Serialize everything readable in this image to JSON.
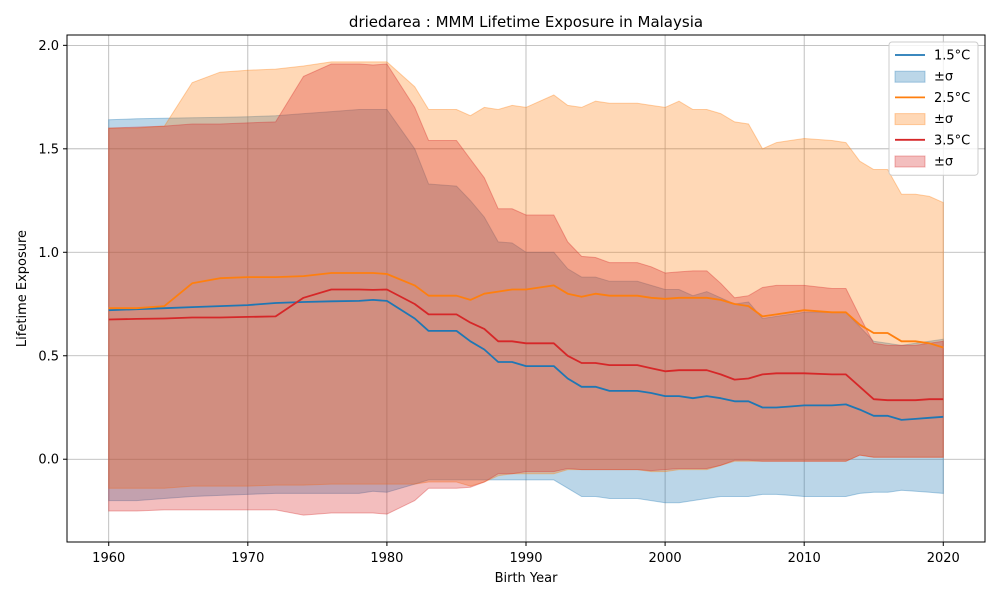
{
  "chart_data": {
    "type": "line",
    "title": "driedarea : MMM Lifetime Exposure in Malaysia",
    "xlabel": "Birth Year",
    "ylabel": "Lifetime Exposure",
    "xlim": [
      1957,
      2023
    ],
    "ylim": [
      -0.4,
      2.05
    ],
    "xticks": [
      1960,
      1970,
      1980,
      1990,
      2000,
      2010,
      2020
    ],
    "yticks": [
      0.0,
      0.5,
      1.0,
      1.5,
      2.0
    ],
    "ytick_labels": [
      "0.0",
      "0.5",
      "1.0",
      "1.5",
      "2.0"
    ],
    "grid": true,
    "legend_position": "upper right",
    "legend_band_label": "±σ",
    "x": [
      1960,
      1962,
      1964,
      1966,
      1968,
      1970,
      1972,
      1974,
      1976,
      1978,
      1979,
      1980,
      1982,
      1983,
      1985,
      1986,
      1987,
      1988,
      1989,
      1990,
      1992,
      1993,
      1994,
      1995,
      1996,
      1997,
      1998,
      1999,
      2000,
      2001,
      2002,
      2003,
      2004,
      2005,
      2006,
      2007,
      2008,
      2009,
      2010,
      2012,
      2013,
      2014,
      2015,
      2016,
      2017,
      2018,
      2019,
      2020
    ],
    "series": [
      {
        "name": "1.5°C",
        "color": "#1f77b4",
        "band_alpha": 0.3,
        "values": [
          0.72,
          0.725,
          0.73,
          0.735,
          0.74,
          0.745,
          0.755,
          0.76,
          0.763,
          0.765,
          0.77,
          0.765,
          0.68,
          0.62,
          0.62,
          0.57,
          0.53,
          0.47,
          0.47,
          0.45,
          0.45,
          0.39,
          0.35,
          0.35,
          0.33,
          0.33,
          0.33,
          0.32,
          0.305,
          0.305,
          0.295,
          0.305,
          0.295,
          0.28,
          0.28,
          0.25,
          0.25,
          0.255,
          0.26,
          0.26,
          0.265,
          0.24,
          0.21,
          0.21,
          0.19,
          0.195,
          0.2,
          0.205
        ],
        "upper": [
          1.64,
          1.645,
          1.648,
          1.65,
          1.652,
          1.655,
          1.66,
          1.67,
          1.68,
          1.69,
          1.69,
          1.69,
          1.5,
          1.33,
          1.32,
          1.25,
          1.17,
          1.05,
          1.045,
          1.0,
          1.0,
          0.92,
          0.88,
          0.88,
          0.86,
          0.86,
          0.86,
          0.84,
          0.82,
          0.82,
          0.79,
          0.81,
          0.78,
          0.75,
          0.76,
          0.68,
          0.69,
          0.7,
          0.71,
          0.71,
          0.71,
          0.64,
          0.57,
          0.56,
          0.55,
          0.56,
          0.57,
          0.58
        ],
        "lower": [
          -0.2,
          -0.2,
          -0.19,
          -0.18,
          -0.175,
          -0.17,
          -0.165,
          -0.165,
          -0.165,
          -0.165,
          -0.155,
          -0.16,
          -0.12,
          -0.1,
          -0.1,
          -0.1,
          -0.1,
          -0.1,
          -0.1,
          -0.1,
          -0.1,
          -0.14,
          -0.18,
          -0.18,
          -0.19,
          -0.19,
          -0.19,
          -0.2,
          -0.21,
          -0.21,
          -0.2,
          -0.19,
          -0.18,
          -0.18,
          -0.18,
          -0.17,
          -0.17,
          -0.175,
          -0.18,
          -0.18,
          -0.18,
          -0.165,
          -0.16,
          -0.16,
          -0.15,
          -0.155,
          -0.16,
          -0.165
        ]
      },
      {
        "name": "2.5°C",
        "color": "#ff7f0e",
        "band_alpha": 0.3,
        "values": [
          0.73,
          0.73,
          0.74,
          0.85,
          0.875,
          0.88,
          0.88,
          0.885,
          0.9,
          0.9,
          0.9,
          0.895,
          0.84,
          0.79,
          0.79,
          0.77,
          0.8,
          0.81,
          0.82,
          0.82,
          0.84,
          0.8,
          0.785,
          0.8,
          0.79,
          0.79,
          0.79,
          0.78,
          0.775,
          0.78,
          0.78,
          0.78,
          0.77,
          0.75,
          0.74,
          0.69,
          0.7,
          0.71,
          0.72,
          0.71,
          0.71,
          0.65,
          0.61,
          0.61,
          0.57,
          0.57,
          0.56,
          0.54
        ],
        "upper": [
          1.6,
          1.6,
          1.61,
          1.82,
          1.87,
          1.88,
          1.885,
          1.9,
          1.92,
          1.92,
          1.92,
          1.92,
          1.8,
          1.69,
          1.69,
          1.66,
          1.7,
          1.69,
          1.71,
          1.7,
          1.76,
          1.71,
          1.7,
          1.73,
          1.72,
          1.72,
          1.72,
          1.71,
          1.7,
          1.73,
          1.69,
          1.69,
          1.67,
          1.63,
          1.62,
          1.5,
          1.53,
          1.54,
          1.55,
          1.54,
          1.53,
          1.44,
          1.4,
          1.4,
          1.28,
          1.28,
          1.27,
          1.24
        ],
        "lower": [
          -0.14,
          -0.14,
          -0.14,
          -0.13,
          -0.13,
          -0.13,
          -0.125,
          -0.125,
          -0.12,
          -0.12,
          -0.12,
          -0.12,
          -0.12,
          -0.11,
          -0.11,
          -0.13,
          -0.11,
          -0.08,
          -0.07,
          -0.07,
          -0.07,
          -0.05,
          -0.05,
          -0.05,
          -0.05,
          -0.05,
          -0.05,
          -0.06,
          -0.06,
          -0.05,
          -0.05,
          -0.05,
          -0.03,
          -0.01,
          -0.01,
          -0.01,
          -0.01,
          -0.01,
          -0.01,
          -0.01,
          -0.01,
          0.02,
          0.01,
          0.01,
          0.01,
          0.01,
          0.01,
          0.01
        ]
      },
      {
        "name": "3.5°C",
        "color": "#d62728",
        "band_alpha": 0.3,
        "values": [
          0.675,
          0.678,
          0.68,
          0.685,
          0.685,
          0.688,
          0.69,
          0.78,
          0.82,
          0.82,
          0.818,
          0.82,
          0.75,
          0.7,
          0.7,
          0.66,
          0.63,
          0.57,
          0.57,
          0.56,
          0.56,
          0.5,
          0.465,
          0.465,
          0.455,
          0.455,
          0.455,
          0.44,
          0.425,
          0.43,
          0.43,
          0.43,
          0.41,
          0.385,
          0.39,
          0.41,
          0.415,
          0.415,
          0.415,
          0.41,
          0.41,
          0.35,
          0.29,
          0.285,
          0.285,
          0.285,
          0.29,
          0.29
        ],
        "upper": [
          1.6,
          1.605,
          1.61,
          1.62,
          1.62,
          1.625,
          1.63,
          1.85,
          1.91,
          1.91,
          1.905,
          1.91,
          1.7,
          1.54,
          1.54,
          1.45,
          1.36,
          1.21,
          1.21,
          1.18,
          1.18,
          1.05,
          0.98,
          0.975,
          0.95,
          0.95,
          0.95,
          0.93,
          0.9,
          0.905,
          0.91,
          0.91,
          0.85,
          0.78,
          0.79,
          0.83,
          0.84,
          0.84,
          0.84,
          0.825,
          0.825,
          0.69,
          0.56,
          0.55,
          0.55,
          0.55,
          0.56,
          0.57
        ],
        "lower": [
          -0.25,
          -0.25,
          -0.245,
          -0.245,
          -0.245,
          -0.245,
          -0.245,
          -0.27,
          -0.26,
          -0.26,
          -0.26,
          -0.265,
          -0.2,
          -0.14,
          -0.14,
          -0.135,
          -0.11,
          -0.07,
          -0.07,
          -0.06,
          -0.06,
          -0.045,
          -0.05,
          -0.05,
          -0.05,
          -0.05,
          -0.05,
          -0.055,
          -0.05,
          -0.045,
          -0.045,
          -0.045,
          -0.03,
          -0.005,
          -0.005,
          -0.01,
          -0.01,
          -0.01,
          -0.01,
          -0.01,
          -0.01,
          0.02,
          0.01,
          0.01,
          0.01,
          0.01,
          0.01,
          0.01
        ]
      }
    ]
  }
}
